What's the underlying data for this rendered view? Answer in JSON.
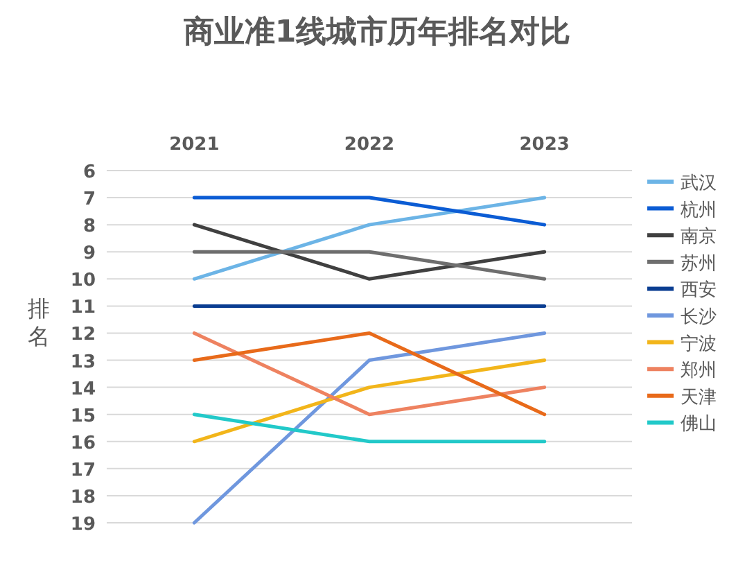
{
  "chart_data": {
    "type": "line",
    "title": "商业准1线城市历年排名对比",
    "ylabel": "排名",
    "categories": [
      "2021",
      "2022",
      "2023"
    ],
    "ylim": [
      19,
      6
    ],
    "yticks": [
      6,
      7,
      8,
      9,
      10,
      11,
      12,
      13,
      14,
      15,
      16,
      17,
      18,
      19
    ],
    "grid": "y",
    "legend": "right",
    "marker": "none",
    "line_style": "solid",
    "series": [
      {
        "name": "武汉",
        "color": "#6cb4e6",
        "values": [
          10,
          8,
          7
        ]
      },
      {
        "name": "杭州",
        "color": "#0b5cd4",
        "values": [
          7,
          7,
          8
        ]
      },
      {
        "name": "南京",
        "color": "#404040",
        "values": [
          8,
          10,
          9
        ]
      },
      {
        "name": "苏州",
        "color": "#6e6e6e",
        "values": [
          9,
          9,
          10
        ]
      },
      {
        "name": "西安",
        "color": "#0a3d91",
        "values": [
          11,
          11,
          11
        ]
      },
      {
        "name": "长沙",
        "color": "#6f97de",
        "values": [
          19,
          13,
          12
        ]
      },
      {
        "name": "宁波",
        "color": "#f2b51a",
        "values": [
          16,
          14,
          13
        ]
      },
      {
        "name": "郑州",
        "color": "#ee8260",
        "values": [
          12,
          15,
          14
        ]
      },
      {
        "name": "天津",
        "color": "#e86a1a",
        "values": [
          13,
          12,
          15
        ]
      },
      {
        "name": "佛山",
        "color": "#22c9c9",
        "values": [
          15,
          16,
          16
        ]
      }
    ]
  }
}
